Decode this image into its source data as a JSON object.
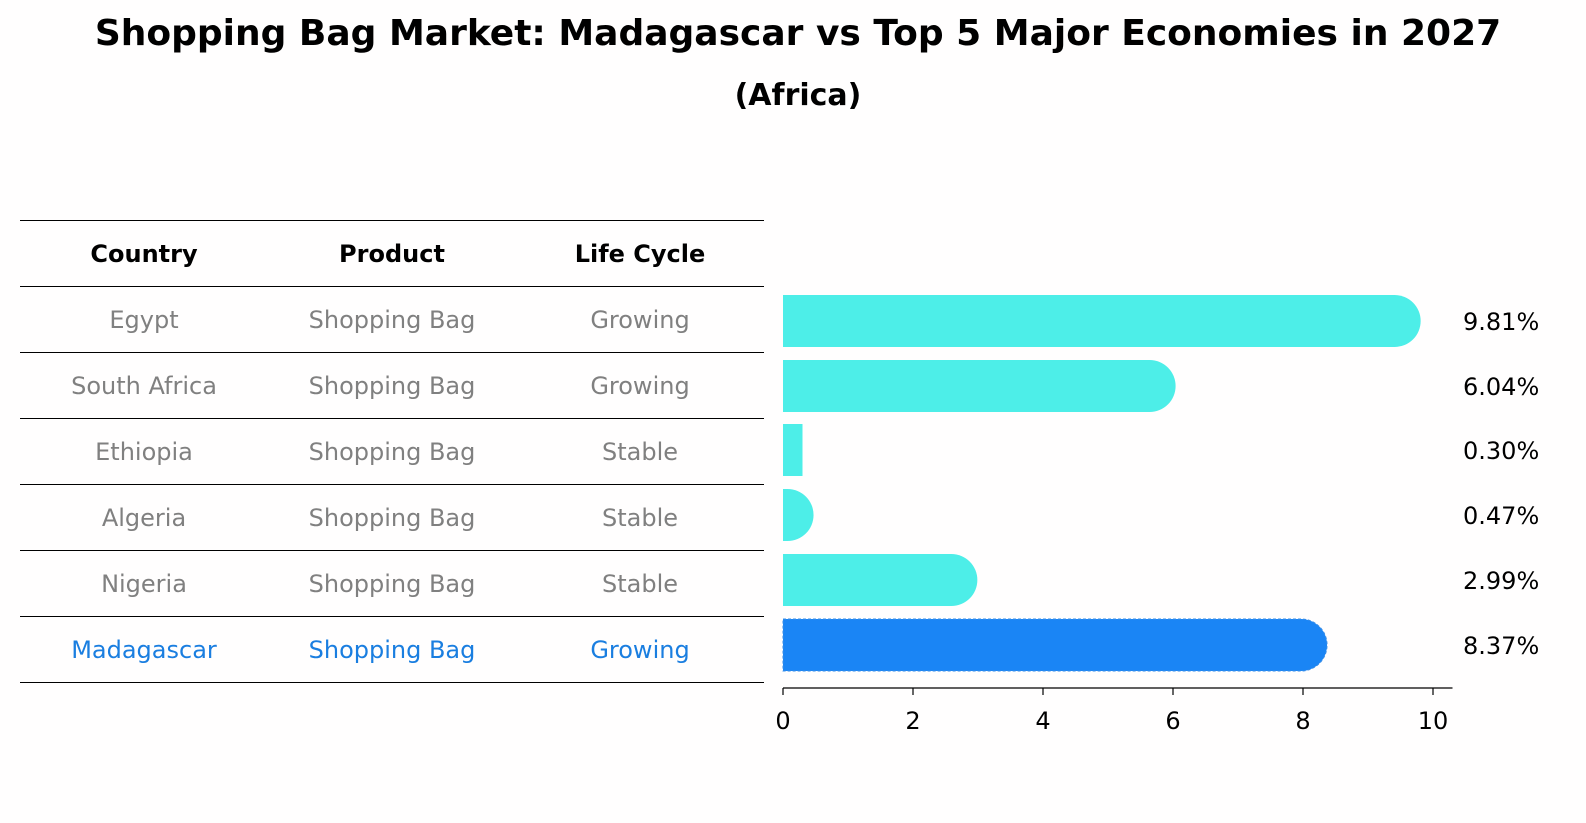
{
  "title": "Shopping Bag Market: Madagascar vs Top 5 Major Economies in 2027",
  "subtitle": "(Africa)",
  "table": {
    "headers": [
      "Country",
      "Product",
      "Life Cycle"
    ],
    "rows": [
      {
        "country": "Egypt",
        "product": "Shopping Bag",
        "life_cycle": "Growing",
        "highlight": false
      },
      {
        "country": "South Africa",
        "product": "Shopping Bag",
        "life_cycle": "Growing",
        "highlight": false
      },
      {
        "country": "Ethiopia",
        "product": "Shopping Bag",
        "life_cycle": "Stable",
        "highlight": false
      },
      {
        "country": "Algeria",
        "product": "Shopping Bag",
        "life_cycle": "Stable",
        "highlight": false
      },
      {
        "country": "Nigeria",
        "product": "Shopping Bag",
        "life_cycle": "Stable",
        "highlight": false
      },
      {
        "country": "Madagascar",
        "product": "Shopping Bag",
        "life_cycle": "Growing",
        "highlight": true
      }
    ]
  },
  "chart_data": {
    "type": "bar",
    "orientation": "horizontal",
    "categories": [
      "Egypt",
      "South Africa",
      "Ethiopia",
      "Algeria",
      "Nigeria",
      "Madagascar"
    ],
    "values": [
      9.81,
      6.04,
      0.3,
      0.47,
      2.99,
      8.37
    ],
    "value_labels": [
      "9.81%",
      "6.04%",
      "0.30%",
      "0.47%",
      "2.99%",
      "8.37%"
    ],
    "xlim": [
      0,
      10.3
    ],
    "xticks": [
      0,
      2,
      4,
      6,
      8,
      10
    ],
    "xlabel": "",
    "ylabel": "",
    "grid": false,
    "colors": {
      "default": "#4deee8",
      "highlight": "#1a85f5"
    }
  }
}
